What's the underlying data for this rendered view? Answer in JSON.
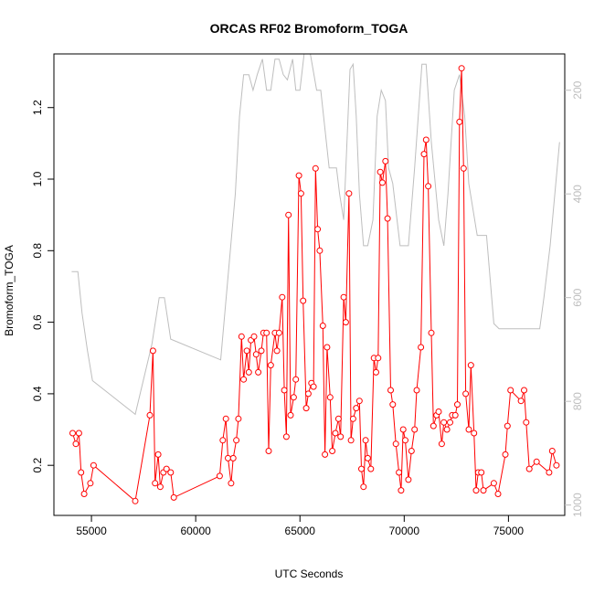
{
  "chart_data": {
    "type": "line",
    "title": "ORCAS RF02 Bromoform_TOGA",
    "xlabel": "UTC Seconds",
    "ylabel": "Bromoform_TOGA",
    "xlim": [
      53200,
      77700
    ],
    "ylim": [
      0.06,
      1.35
    ],
    "xticks": [
      55000,
      60000,
      65000,
      70000,
      75000
    ],
    "xtick_labels": [
      "55000",
      "60000",
      "65000",
      "70000",
      "75000"
    ],
    "yticks": [
      0.2,
      0.4,
      0.6,
      0.8,
      1.0,
      1.2
    ],
    "ytick_labels": [
      "0.2",
      "0.4",
      "0.6",
      "0.8",
      "1.0",
      "1.2"
    ],
    "y2_reversed": true,
    "y2lim": [
      1020,
      130
    ],
    "y2ticks": [
      200,
      400,
      600,
      800,
      1000
    ],
    "y2tick_labels": [
      "200",
      "400",
      "600",
      "800",
      "1000"
    ],
    "grid": false,
    "colors": {
      "bromoform": "#ff0000",
      "pressure": "#bebebe",
      "text": "#000000",
      "axis2": "#bebebe"
    },
    "series": [
      {
        "type": "line+points",
        "axis": "left",
        "values": [
          [
            54100,
            0.29
          ],
          [
            54250,
            0.26
          ],
          [
            54400,
            0.29
          ],
          [
            54500,
            0.18
          ],
          [
            54650,
            0.12
          ],
          [
            54950,
            0.15
          ],
          [
            55100,
            0.2
          ],
          [
            57100,
            0.1
          ],
          [
            57800,
            0.34
          ],
          [
            57950,
            0.52
          ],
          [
            58050,
            0.15
          ],
          [
            58200,
            0.23
          ],
          [
            58300,
            0.14
          ],
          [
            58450,
            0.18
          ],
          [
            58600,
            0.19
          ],
          [
            58800,
            0.18
          ],
          [
            58950,
            0.11
          ],
          [
            61150,
            0.17
          ],
          [
            61300,
            0.27
          ],
          [
            61450,
            0.33
          ],
          [
            61550,
            0.22
          ],
          [
            61700,
            0.15
          ],
          [
            61800,
            0.22
          ],
          [
            61950,
            0.27
          ],
          [
            62050,
            0.33
          ],
          [
            62200,
            0.56
          ],
          [
            62300,
            0.44
          ],
          [
            62450,
            0.52
          ],
          [
            62550,
            0.46
          ],
          [
            62650,
            0.55
          ],
          [
            62800,
            0.56
          ],
          [
            62900,
            0.51
          ],
          [
            63000,
            0.46
          ],
          [
            63150,
            0.52
          ],
          [
            63250,
            0.57
          ],
          [
            63400,
            0.57
          ],
          [
            63500,
            0.24
          ],
          [
            63600,
            0.48
          ],
          [
            63800,
            0.57
          ],
          [
            63900,
            0.52
          ],
          [
            64000,
            0.57
          ],
          [
            64150,
            0.67
          ],
          [
            64250,
            0.41
          ],
          [
            64350,
            0.28
          ],
          [
            64450,
            0.9
          ],
          [
            64550,
            0.34
          ],
          [
            64700,
            0.39
          ],
          [
            64800,
            0.44
          ],
          [
            64950,
            1.01
          ],
          [
            65050,
            0.96
          ],
          [
            65150,
            0.66
          ],
          [
            65300,
            0.36
          ],
          [
            65400,
            0.4
          ],
          [
            65550,
            0.43
          ],
          [
            65650,
            0.42
          ],
          [
            65750,
            1.03
          ],
          [
            65850,
            0.86
          ],
          [
            65950,
            0.8
          ],
          [
            66100,
            0.59
          ],
          [
            66200,
            0.23
          ],
          [
            66300,
            0.53
          ],
          [
            66450,
            0.39
          ],
          [
            66550,
            0.24
          ],
          [
            66700,
            0.29
          ],
          [
            66850,
            0.33
          ],
          [
            66950,
            0.28
          ],
          [
            67100,
            0.67
          ],
          [
            67200,
            0.6
          ],
          [
            67350,
            0.96
          ],
          [
            67450,
            0.27
          ],
          [
            67550,
            0.33
          ],
          [
            67700,
            0.36
          ],
          [
            67850,
            0.38
          ],
          [
            67950,
            0.19
          ],
          [
            68050,
            0.14
          ],
          [
            68150,
            0.27
          ],
          [
            68250,
            0.22
          ],
          [
            68400,
            0.19
          ],
          [
            68550,
            0.5
          ],
          [
            68650,
            0.46
          ],
          [
            68750,
            0.5
          ],
          [
            68850,
            1.02
          ],
          [
            68950,
            0.99
          ],
          [
            69100,
            1.05
          ],
          [
            69200,
            0.89
          ],
          [
            69350,
            0.41
          ],
          [
            69450,
            0.37
          ],
          [
            69600,
            0.26
          ],
          [
            69750,
            0.18
          ],
          [
            69850,
            0.13
          ],
          [
            69950,
            0.3
          ],
          [
            70050,
            0.27
          ],
          [
            70200,
            0.16
          ],
          [
            70350,
            0.24
          ],
          [
            70500,
            0.3
          ],
          [
            70600,
            0.41
          ],
          [
            70800,
            0.53
          ],
          [
            70950,
            1.07
          ],
          [
            71050,
            1.11
          ],
          [
            71150,
            0.98
          ],
          [
            71300,
            0.57
          ],
          [
            71400,
            0.31
          ],
          [
            71550,
            0.34
          ],
          [
            71650,
            0.35
          ],
          [
            71800,
            0.26
          ],
          [
            71900,
            0.32
          ],
          [
            72050,
            0.3
          ],
          [
            72200,
            0.32
          ],
          [
            72300,
            0.34
          ],
          [
            72450,
            0.34
          ],
          [
            72550,
            0.37
          ],
          [
            72650,
            1.16
          ],
          [
            72750,
            1.31
          ],
          [
            72850,
            1.03
          ],
          [
            72950,
            0.4
          ],
          [
            73100,
            0.3
          ],
          [
            73200,
            0.48
          ],
          [
            73350,
            0.29
          ],
          [
            73450,
            0.13
          ],
          [
            73550,
            0.18
          ],
          [
            73700,
            0.18
          ],
          [
            73800,
            0.13
          ],
          [
            74300,
            0.15
          ],
          [
            74500,
            0.12
          ],
          [
            74850,
            0.23
          ],
          [
            74950,
            0.31
          ],
          [
            75100,
            0.41
          ],
          [
            75600,
            0.38
          ],
          [
            75750,
            0.41
          ],
          [
            75850,
            0.32
          ],
          [
            76000,
            0.19
          ],
          [
            76350,
            0.21
          ],
          [
            76950,
            0.18
          ],
          [
            77100,
            0.24
          ],
          [
            77300,
            0.2
          ]
        ]
      },
      {
        "type": "line",
        "axis": "right",
        "values": [
          [
            54050,
            550
          ],
          [
            54350,
            550
          ],
          [
            54550,
            630
          ],
          [
            54800,
            700
          ],
          [
            55050,
            760
          ],
          [
            57100,
            825
          ],
          [
            57900,
            690
          ],
          [
            58250,
            600
          ],
          [
            58500,
            600
          ],
          [
            58800,
            680
          ],
          [
            61200,
            720
          ],
          [
            61900,
            400
          ],
          [
            62100,
            250
          ],
          [
            62300,
            170
          ],
          [
            62550,
            170
          ],
          [
            62750,
            200
          ],
          [
            62950,
            170
          ],
          [
            63200,
            140
          ],
          [
            63400,
            200
          ],
          [
            63600,
            200
          ],
          [
            63800,
            140
          ],
          [
            64000,
            140
          ],
          [
            64200,
            170
          ],
          [
            64400,
            180
          ],
          [
            64650,
            140
          ],
          [
            64800,
            200
          ],
          [
            65000,
            200
          ],
          [
            65200,
            120
          ],
          [
            65500,
            120
          ],
          [
            65800,
            200
          ],
          [
            66000,
            200
          ],
          [
            66400,
            350
          ],
          [
            66750,
            350
          ],
          [
            66900,
            400
          ],
          [
            67100,
            450
          ],
          [
            67400,
            160
          ],
          [
            67550,
            150
          ],
          [
            67700,
            250
          ],
          [
            67850,
            400
          ],
          [
            68050,
            500
          ],
          [
            68250,
            500
          ],
          [
            68500,
            450
          ],
          [
            68700,
            250
          ],
          [
            68900,
            200
          ],
          [
            69100,
            220
          ],
          [
            69250,
            350
          ],
          [
            69450,
            380
          ],
          [
            69800,
            500
          ],
          [
            70200,
            500
          ],
          [
            70500,
            350
          ],
          [
            70850,
            150
          ],
          [
            71050,
            150
          ],
          [
            71300,
            300
          ],
          [
            71650,
            450
          ],
          [
            71900,
            500
          ],
          [
            72100,
            400
          ],
          [
            72400,
            200
          ],
          [
            72650,
            170
          ],
          [
            72900,
            250
          ],
          [
            73100,
            380
          ],
          [
            73500,
            480
          ],
          [
            73950,
            480
          ],
          [
            74300,
            650
          ],
          [
            74550,
            660
          ],
          [
            76500,
            660
          ],
          [
            76700,
            600
          ],
          [
            77000,
            500
          ],
          [
            77450,
            300
          ]
        ]
      }
    ]
  }
}
